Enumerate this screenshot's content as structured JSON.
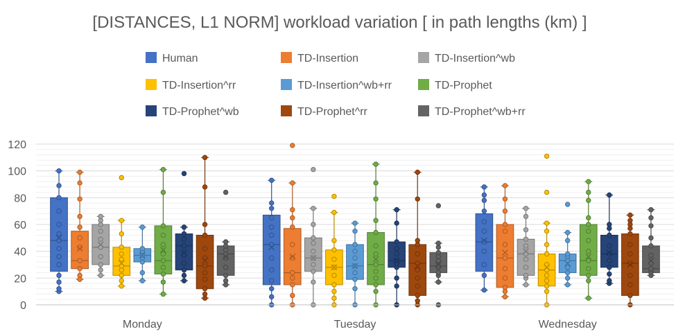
{
  "chart_data": {
    "type": "box",
    "title": "[DISTANCES, L1 NORM] workload variation [ in path lengths (km) ]",
    "xlabel": "",
    "ylabel": "",
    "ylim": [
      0,
      120
    ],
    "yticks": [
      0,
      20,
      40,
      60,
      80,
      100,
      120
    ],
    "categories": [
      "Monday",
      "Tuesday",
      "Wednesday"
    ],
    "grid": true,
    "legend": "top",
    "series": [
      {
        "name": "Human",
        "color": "#4472C4",
        "boxes": [
          {
            "min": 10,
            "q1": 25,
            "median": 48,
            "q3": 80,
            "max": 100,
            "mean": 50,
            "points": [
              10,
              12,
              17,
              22,
              30,
              36,
              42,
              48,
              53,
              60,
              70,
              80,
              89,
              100
            ]
          },
          {
            "min": 0,
            "q1": 15,
            "median": 45,
            "q3": 67,
            "max": 93,
            "mean": 43,
            "points": [
              0,
              6,
              12,
              18,
              26,
              35,
              45,
              52,
              58,
              65,
              72,
              76,
              93
            ]
          },
          {
            "min": 11,
            "q1": 25,
            "median": 47,
            "q3": 68,
            "max": 88,
            "mean": 48,
            "points": [
              11,
              22,
              30,
              40,
              47,
              55,
              62,
              70,
              78,
              82,
              88
            ]
          }
        ]
      },
      {
        "name": "TD-Insertion",
        "color": "#ED7D31",
        "boxes": [
          {
            "min": 19,
            "q1": 27,
            "median": 33,
            "q3": 55,
            "max": 99,
            "mean": 42,
            "points": [
              19,
              22,
              27,
              33,
              43,
              50,
              58,
              66,
              79,
              91,
              99
            ]
          },
          {
            "min": 0,
            "q1": 15,
            "median": 24,
            "q3": 57,
            "max": 91,
            "mean": 36,
            "points": [
              0,
              7,
              15,
              20,
              24,
              35,
              45,
              58,
              65,
              71,
              91,
              119
            ]
          },
          {
            "min": 6,
            "q1": 13,
            "median": 35,
            "q3": 60,
            "max": 89,
            "mean": 39,
            "points": [
              6,
              10,
              13,
              20,
              27,
              35,
              45,
              55,
              60,
              70,
              79,
              89
            ]
          }
        ]
      },
      {
        "name": "TD-Insertion^wb",
        "color": "#A5A5A5",
        "boxes": [
          {
            "min": 22,
            "q1": 30,
            "median": 43,
            "q3": 60,
            "max": 66,
            "mean": 45,
            "points": [
              22,
              26,
              30,
              36,
              43,
              49,
              55,
              60,
              63,
              66
            ]
          },
          {
            "min": 0,
            "q1": 25,
            "median": 35,
            "q3": 50,
            "max": 72,
            "mean": 35,
            "points": [
              0,
              17,
              25,
              30,
              35,
              40,
              46,
              50,
              60,
              72,
              101
            ]
          },
          {
            "min": 15,
            "q1": 22,
            "median": 38,
            "q3": 49,
            "max": 72,
            "mean": 40,
            "points": [
              15,
              20,
              22,
              28,
              34,
              38,
              44,
              49,
              56,
              66,
              72
            ]
          }
        ]
      },
      {
        "name": "TD-Insertion^rr",
        "color": "#FFC000",
        "boxes": [
          {
            "min": 14,
            "q1": 22,
            "median": 29,
            "q3": 43,
            "max": 63,
            "mean": 31,
            "points": [
              14,
              18,
              22,
              26,
              29,
              34,
              38,
              43,
              53,
              63,
              95
            ]
          },
          {
            "min": 0,
            "q1": 15,
            "median": 28,
            "q3": 41,
            "max": 69,
            "mean": 28,
            "points": [
              0,
              5,
              10,
              15,
              22,
              28,
              34,
              41,
              48,
              69,
              81
            ]
          },
          {
            "min": 0,
            "q1": 14,
            "median": 26,
            "q3": 38,
            "max": 61,
            "mean": 28,
            "points": [
              0,
              10,
              14,
              18,
              22,
              26,
              30,
              38,
              45,
              55,
              61,
              84,
              111
            ]
          }
        ]
      },
      {
        "name": "TD-Insertion^wb+rr",
        "color": "#5B9BD5",
        "boxes": [
          {
            "min": 18,
            "q1": 32,
            "median": 37,
            "q3": 42,
            "max": 58,
            "mean": 37,
            "points": [
              18,
              24,
              32,
              35,
              37,
              40,
              42,
              58
            ]
          },
          {
            "min": 0,
            "q1": 19,
            "median": 29,
            "q3": 45,
            "max": 61,
            "mean": 29,
            "points": [
              0,
              12,
              19,
              24,
              29,
              35,
              40,
              45,
              55,
              61
            ]
          },
          {
            "min": 15,
            "q1": 24,
            "median": 33,
            "q3": 38,
            "max": 54,
            "mean": 31,
            "points": [
              15,
              20,
              24,
              28,
              33,
              36,
              38,
              48,
              54,
              75
            ]
          }
        ]
      },
      {
        "name": "TD-Prophet",
        "color": "#70AD47",
        "boxes": [
          {
            "min": 8,
            "q1": 23,
            "median": 33,
            "q3": 59,
            "max": 101,
            "mean": 41,
            "points": [
              8,
              17,
              23,
              28,
              33,
              38,
              45,
              52,
              59,
              84,
              101
            ]
          },
          {
            "min": 0,
            "q1": 15,
            "median": 30,
            "q3": 54,
            "max": 105,
            "mean": 34,
            "points": [
              0,
              10,
              15,
              20,
              25,
              30,
              38,
              44,
              54,
              63,
              79,
              91,
              105
            ]
          },
          {
            "min": 5,
            "q1": 22,
            "median": 33,
            "q3": 60,
            "max": 92,
            "mean": 36,
            "points": [
              5,
              18,
              22,
              27,
              33,
              40,
              48,
              55,
              60,
              65,
              78,
              84,
              92
            ]
          }
        ]
      },
      {
        "name": "TD-Prophet^wb",
        "color": "#264478",
        "boxes": [
          {
            "min": 18,
            "q1": 26,
            "median": 44,
            "q3": 53,
            "max": 58,
            "mean": 39,
            "points": [
              18,
              22,
              26,
              31,
              37,
              44,
              49,
              53,
              58,
              98
            ]
          },
          {
            "min": 0,
            "q1": 28,
            "median": 33,
            "q3": 47,
            "max": 71,
            "mean": 33,
            "points": [
              0,
              14,
              20,
              28,
              31,
              33,
              38,
              42,
              47,
              61,
              71
            ]
          },
          {
            "min": 16,
            "q1": 28,
            "median": 38,
            "q3": 52,
            "max": 82,
            "mean": 39,
            "points": [
              16,
              18,
              23,
              28,
              33,
              38,
              44,
              52,
              57,
              60,
              82
            ]
          }
        ]
      },
      {
        "name": "TD-Prophet^rr",
        "color": "#9E480E",
        "boxes": [
          {
            "min": 5,
            "q1": 12,
            "median": 29,
            "q3": 52,
            "max": 110,
            "mean": 33,
            "points": [
              5,
              8,
              12,
              19,
              24,
              29,
              35,
              42,
              52,
              60,
              88,
              110
            ]
          },
          {
            "min": 0,
            "q1": 7,
            "median": 31,
            "q3": 45,
            "max": 99,
            "mean": 29,
            "points": [
              0,
              3,
              7,
              14,
              20,
              26,
              31,
              38,
              45,
              48,
              79,
              99
            ]
          },
          {
            "min": 0,
            "q1": 7,
            "median": 31,
            "q3": 53,
            "max": 67,
            "mean": 30,
            "points": [
              0,
              7,
              15,
              22,
              31,
              38,
              45,
              53,
              57,
              60,
              63,
              67
            ]
          }
        ]
      },
      {
        "name": "TD-Prophet^wb+rr",
        "color": "#636363",
        "boxes": [
          {
            "min": 15,
            "q1": 22,
            "median": 38,
            "q3": 44,
            "max": 47,
            "mean": 36,
            "points": [
              15,
              18,
              22,
              28,
              35,
              38,
              41,
              44,
              47,
              84
            ]
          },
          {
            "min": 17,
            "q1": 24,
            "median": 29,
            "q3": 39,
            "max": 46,
            "mean": 30,
            "points": [
              0,
              17,
              22,
              24,
              28,
              29,
              33,
              36,
              39,
              43,
              46,
              74
            ]
          },
          {
            "min": 22,
            "q1": 24,
            "median": 27,
            "q3": 44,
            "max": 71,
            "mean": 33,
            "points": [
              22,
              24,
              26,
              27,
              31,
              37,
              44,
              50,
              59,
              65,
              71
            ]
          }
        ]
      }
    ]
  }
}
